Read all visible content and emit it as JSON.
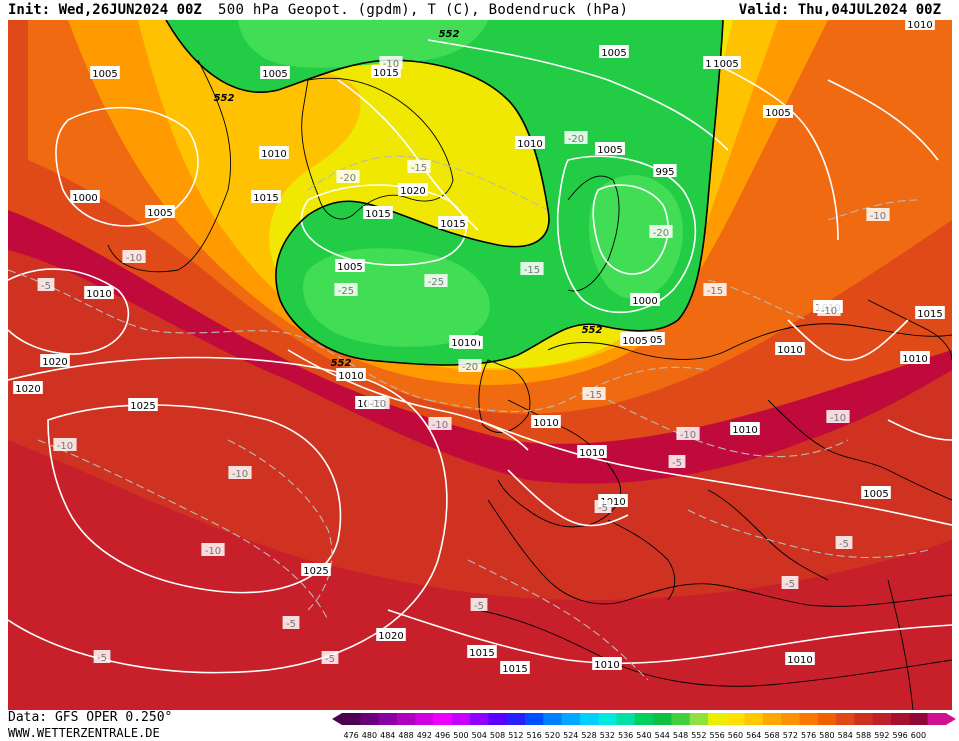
{
  "header": {
    "init": "Init: Wed,26JUN2024 00Z",
    "title": "500 hPa Geopot. (gpdm), T (C), Bodendruck (hPa)",
    "valid": "Valid: Thu,04JUL2024 00Z"
  },
  "footer": {
    "source": "Data: GFS OPER 0.250°",
    "site": "WWW.WETTERZENTRALE.DE"
  },
  "legend": {
    "ticks": [
      "476",
      "480",
      "484",
      "488",
      "492",
      "496",
      "500",
      "504",
      "508",
      "512",
      "516",
      "520",
      "524",
      "528",
      "532",
      "536",
      "540",
      "544",
      "548",
      "552",
      "556",
      "560",
      "564",
      "568",
      "572",
      "576",
      "580",
      "584",
      "588",
      "592",
      "596",
      "600"
    ],
    "colors": [
      "#4b0050",
      "#6a007a",
      "#8a00a0",
      "#b000c0",
      "#d000e0",
      "#ee00ff",
      "#c800ff",
      "#9000ff",
      "#5a00ff",
      "#2a20ff",
      "#0050ff",
      "#0080ff",
      "#00a8ff",
      "#00d0ff",
      "#00e8e0",
      "#00e0a0",
      "#00d060",
      "#10c040",
      "#40d040",
      "#90e040",
      "#e8f000",
      "#ffe000",
      "#ffc800",
      "#ffa800",
      "#ff9000",
      "#f87800",
      "#f06000",
      "#e04818",
      "#d03020",
      "#c02028",
      "#a81030",
      "#900838",
      "#d01090"
    ]
  },
  "map": {
    "colors": {
      "z600": "#c00a3c",
      "z592": "#c8202a",
      "z588": "#d03222",
      "z584": "#e04a18",
      "z576": "#ef6a10",
      "z568": "#ff9a00",
      "z560": "#ffc200",
      "z556": "#f0e800",
      "z548": "#22cc44",
      "z540": "#40dd55"
    },
    "pressure_labels": [
      "1010",
      "1005",
      "1005",
      "1005",
      "1000",
      "1015",
      "1010",
      "1005",
      "1005",
      "1015",
      "1020",
      "1025",
      "1025",
      "1020",
      "1020",
      "1015",
      "1015",
      "1010",
      "1010",
      "1010",
      "1010",
      "1010",
      "1010",
      "1015",
      "1010",
      "1015",
      "1020",
      "1015",
      "1010",
      "1005",
      "1000",
      "1000",
      "995",
      "1010",
      "1010",
      "1015",
      "1005",
      "1005",
      "1005",
      "1010",
      "1010",
      "1010",
      "1005",
      "1005",
      "1005",
      "1010",
      "1010",
      "1005",
      "1005"
    ],
    "temp_labels": [
      "-20",
      "-20",
      "-15",
      "-20",
      "-25",
      "-25",
      "-15",
      "-20",
      "-15",
      "-15",
      "-10",
      "-10",
      "-10",
      "-10",
      "-10",
      "-10",
      "-10",
      "-10",
      "-10",
      "-10",
      "-10",
      "-5",
      "-5",
      "-5",
      "-5",
      "-5",
      "-5",
      "-5",
      "-5",
      "-5"
    ],
    "geopot_labels": [
      "552",
      "552",
      "552",
      "552"
    ]
  }
}
